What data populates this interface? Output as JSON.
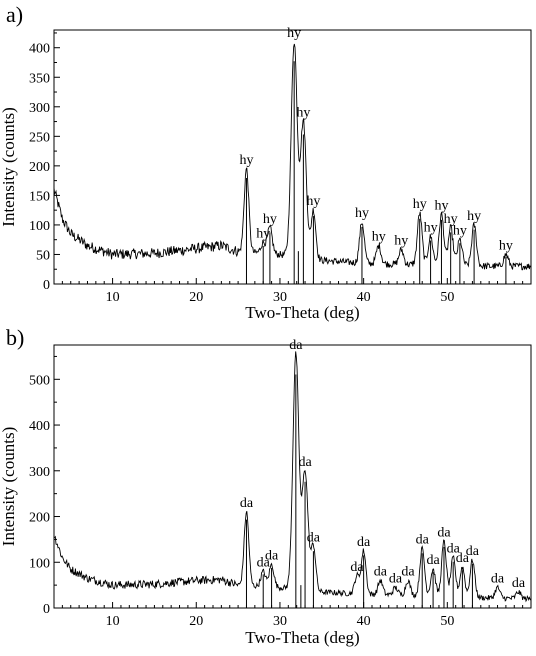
{
  "chart_data": [
    {
      "panel_label": "a)",
      "type": "line",
      "xlabel": "Two-Theta (deg)",
      "ylabel": "Intensity (counts)",
      "xlim": [
        3,
        60
      ],
      "ylim": [
        0,
        430
      ],
      "x_ticks": [
        10,
        20,
        30,
        40,
        50
      ],
      "y_ticks": [
        0,
        50,
        100,
        150,
        200,
        250,
        300,
        350,
        400
      ],
      "grid": false,
      "background": {
        "x": [
          3,
          4,
          5,
          7,
          10,
          15,
          20,
          23,
          25,
          30,
          35,
          40,
          45,
          50,
          55,
          60
        ],
        "y": [
          160,
          110,
          85,
          65,
          50,
          52,
          60,
          65,
          55,
          50,
          40,
          35,
          33,
          32,
          30,
          30
        ]
      },
      "peaks": [
        {
          "x": 26.0,
          "y": 195,
          "label": "hy"
        },
        {
          "x": 28.0,
          "y": 70,
          "label": "hy"
        },
        {
          "x": 28.8,
          "y": 95,
          "label": "hy"
        },
        {
          "x": 31.7,
          "y": 410,
          "label": "hy"
        },
        {
          "x": 32.8,
          "y": 275,
          "label": "hy"
        },
        {
          "x": 34.0,
          "y": 125,
          "label": "hy"
        },
        {
          "x": 39.8,
          "y": 105,
          "label": "hy"
        },
        {
          "x": 41.8,
          "y": 65,
          "label": "hy"
        },
        {
          "x": 44.5,
          "y": 58,
          "label": "hy"
        },
        {
          "x": 46.7,
          "y": 120,
          "label": "hy"
        },
        {
          "x": 48.0,
          "y": 80,
          "label": "hy"
        },
        {
          "x": 49.3,
          "y": 118,
          "label": "hy"
        },
        {
          "x": 50.4,
          "y": 95,
          "label": "hy"
        },
        {
          "x": 51.5,
          "y": 75,
          "label": "hy"
        },
        {
          "x": 53.2,
          "y": 100,
          "label": "hy"
        },
        {
          "x": 57.0,
          "y": 50,
          "label": "hy"
        }
      ],
      "reference_lines": [
        26.0,
        28.0,
        28.8,
        31.7,
        32.2,
        32.8,
        34.0,
        39.8,
        46.7,
        48.0,
        49.3,
        50.4,
        51.5,
        53.2,
        57.0
      ]
    },
    {
      "panel_label": "b)",
      "type": "line",
      "xlabel": "Two-Theta (deg)",
      "ylabel": "Intensity (counts)",
      "xlim": [
        3,
        60
      ],
      "ylim": [
        0,
        575
      ],
      "x_ticks": [
        10,
        20,
        30,
        40,
        50
      ],
      "y_ticks": [
        0,
        100,
        200,
        300,
        400,
        500
      ],
      "grid": false,
      "background": {
        "x": [
          3,
          4,
          5,
          7,
          10,
          15,
          20,
          23,
          25,
          30,
          35,
          40,
          45,
          50,
          55,
          60
        ],
        "y": [
          160,
          110,
          85,
          65,
          50,
          52,
          60,
          62,
          50,
          45,
          35,
          30,
          28,
          25,
          22,
          20
        ]
      },
      "peaks": [
        {
          "x": 26.0,
          "y": 210,
          "label": "da"
        },
        {
          "x": 28.0,
          "y": 80,
          "label": "da"
        },
        {
          "x": 29.0,
          "y": 95,
          "label": "da"
        },
        {
          "x": 31.9,
          "y": 555,
          "label": "da"
        },
        {
          "x": 33.0,
          "y": 300,
          "label": "da"
        },
        {
          "x": 34.0,
          "y": 135,
          "label": "da"
        },
        {
          "x": 39.2,
          "y": 70,
          "label": "da"
        },
        {
          "x": 40.0,
          "y": 125,
          "label": "da"
        },
        {
          "x": 42.0,
          "y": 60,
          "label": "da"
        },
        {
          "x": 43.8,
          "y": 45,
          "label": "da"
        },
        {
          "x": 45.3,
          "y": 60,
          "label": "da"
        },
        {
          "x": 47.0,
          "y": 130,
          "label": "da"
        },
        {
          "x": 48.3,
          "y": 85,
          "label": "da"
        },
        {
          "x": 49.6,
          "y": 145,
          "label": "da"
        },
        {
          "x": 50.7,
          "y": 110,
          "label": "da"
        },
        {
          "x": 51.8,
          "y": 90,
          "label": "da"
        },
        {
          "x": 53.0,
          "y": 105,
          "label": "da"
        },
        {
          "x": 56.0,
          "y": 45,
          "label": "da"
        },
        {
          "x": 58.5,
          "y": 35,
          "label": "da"
        }
      ],
      "reference_lines": [
        26.0,
        28.0,
        29.0,
        31.9,
        32.5,
        33.0,
        34.0,
        40.0,
        47.0,
        48.3,
        49.6,
        50.7,
        51.8,
        53.0
      ]
    }
  ]
}
